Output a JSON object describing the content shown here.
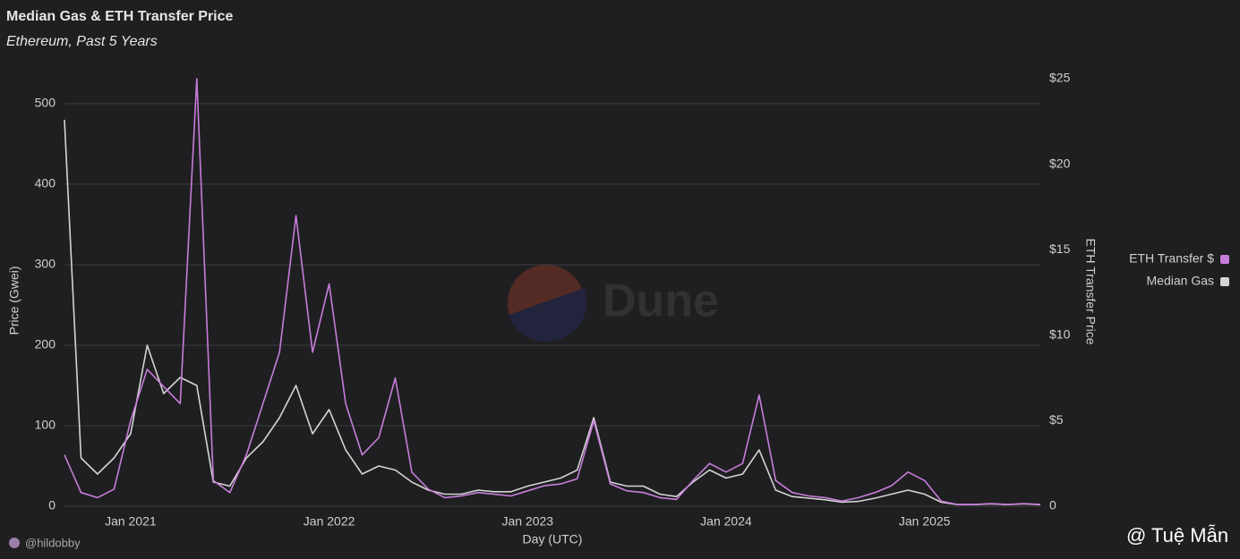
{
  "chart_data": {
    "type": "line",
    "title": "Median Gas & ETH Transfer Price",
    "subtitle": "Ethereum, Past 5 Years",
    "x_label": "Day (UTC)",
    "y_label": "Price (Gwei)",
    "y2_label": "ETH Transfer Price",
    "credit": "@hildobby",
    "watermark": "Dune",
    "overlay_credit": "@ Tuệ Mẫn",
    "x": [
      "2020-09",
      "2020-10",
      "2020-11",
      "2020-12",
      "2021-01",
      "2021-02",
      "2021-03",
      "2021-04",
      "2021-05",
      "2021-06",
      "2021-07",
      "2021-08",
      "2021-09",
      "2021-10",
      "2021-11",
      "2021-12",
      "2022-01",
      "2022-02",
      "2022-03",
      "2022-04",
      "2022-05",
      "2022-06",
      "2022-07",
      "2022-08",
      "2022-09",
      "2022-10",
      "2022-11",
      "2022-12",
      "2023-01",
      "2023-02",
      "2023-03",
      "2023-04",
      "2023-05",
      "2023-06",
      "2023-07",
      "2023-08",
      "2023-09",
      "2023-10",
      "2023-11",
      "2023-12",
      "2024-01",
      "2024-02",
      "2024-03",
      "2024-04",
      "2024-05",
      "2024-06",
      "2024-07",
      "2024-08",
      "2024-09",
      "2024-10",
      "2024-11",
      "2024-12",
      "2025-01",
      "2025-02",
      "2025-03",
      "2025-04",
      "2025-05",
      "2025-06",
      "2025-07",
      "2025-08"
    ],
    "xlim": [
      "2020-09",
      "2025-08"
    ],
    "xticks": [
      {
        "value": "2021-01",
        "label": "Jan 2021"
      },
      {
        "value": "2022-01",
        "label": "Jan 2022"
      },
      {
        "value": "2023-01",
        "label": "Jan 2023"
      },
      {
        "value": "2024-01",
        "label": "Jan 2024"
      },
      {
        "value": "2025-01",
        "label": "Jan 2025"
      }
    ],
    "ylim": [
      0,
      531
    ],
    "yticks": [
      0,
      100,
      200,
      300,
      400,
      500
    ],
    "y2lim": [
      0,
      25
    ],
    "y2ticks": [
      {
        "value": 0,
        "label": "0"
      },
      {
        "value": 5,
        "label": "$5"
      },
      {
        "value": 10,
        "label": "$10"
      },
      {
        "value": 15,
        "label": "$15"
      },
      {
        "value": 20,
        "label": "$20"
      },
      {
        "value": 25,
        "label": "$25"
      }
    ],
    "grid": true,
    "legend": "right",
    "series": [
      {
        "name": "ETH Transfer $",
        "color": "#c77dd9",
        "axis": "y2",
        "values": [
          3,
          0.8,
          0.5,
          1,
          5,
          8,
          7,
          6,
          25,
          1.5,
          0.8,
          3,
          6,
          9,
          17,
          9,
          13,
          6,
          3,
          4,
          7.5,
          2,
          1,
          0.5,
          0.6,
          0.8,
          0.7,
          0.6,
          0.9,
          1.2,
          1.3,
          1.6,
          5,
          1.3,
          0.9,
          0.8,
          0.5,
          0.4,
          1.5,
          2.5,
          2,
          2.5,
          6.5,
          1.5,
          0.8,
          0.6,
          0.5,
          0.3,
          0.5,
          0.8,
          1.2,
          2,
          1.5,
          0.3,
          0.1,
          0.1,
          0.15,
          0.1,
          0.15,
          0.1
        ]
      },
      {
        "name": "Median Gas",
        "color": "#d4d4d4",
        "values": [
          480,
          60,
          40,
          60,
          90,
          200,
          140,
          160,
          150,
          30,
          25,
          60,
          80,
          110,
          150,
          90,
          120,
          70,
          40,
          50,
          45,
          30,
          20,
          15,
          15,
          20,
          18,
          18,
          25,
          30,
          35,
          45,
          110,
          30,
          25,
          25,
          15,
          12,
          30,
          45,
          35,
          40,
          70,
          20,
          12,
          10,
          8,
          5,
          6,
          10,
          15,
          20,
          15,
          5,
          2,
          2,
          3,
          2,
          3,
          2
        ]
      }
    ]
  }
}
